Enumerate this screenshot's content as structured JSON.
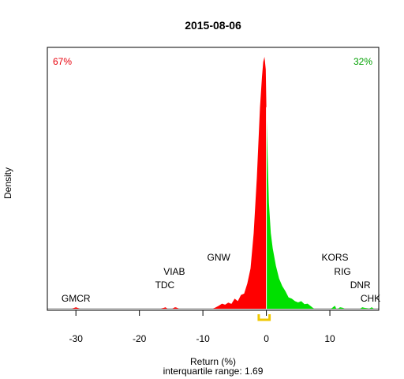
{
  "chart_data": {
    "type": "area",
    "title": "2015-08-06",
    "xlabel": "Return (%)",
    "ylabel": "Density",
    "subtitle": "interquartile range: 1.69",
    "xlim": [
      -34.5,
      17.7
    ],
    "x_ticks": [
      -30,
      -20,
      -10,
      0,
      10
    ],
    "negative_share": "67%",
    "positive_share": "32%",
    "colors": {
      "negative": "#ff0000",
      "positive": "#00e000",
      "iqr": "#f0c800",
      "baseline": "#c8c8c8"
    },
    "iqr": [
      -1.2,
      0.5
    ],
    "density": {
      "x": [
        -30.6,
        -30.2,
        -30.0,
        -29.8,
        -29.4,
        -16.6,
        -16.1,
        -15.9,
        -15.6,
        -14.8,
        -14.4,
        -14.2,
        -13.8,
        -8.4,
        -8.0,
        -7.5,
        -7.0,
        -6.5,
        -6.0,
        -5.5,
        -5.0,
        -4.5,
        -4.0,
        -3.5,
        -3.0,
        -2.5,
        -2.0,
        -1.5,
        -1.0,
        -0.7,
        -0.5,
        -0.3,
        -0.1,
        0.0,
        0.2,
        0.4,
        0.7,
        1.0,
        1.5,
        2.0,
        2.5,
        3.0,
        3.5,
        4.0,
        4.5,
        5.0,
        5.5,
        6.0,
        6.5,
        7.0,
        7.5,
        10.2,
        10.6,
        10.8,
        11.0,
        11.3,
        11.6,
        12.0,
        12.3,
        14.8,
        15.1,
        15.4,
        16.2,
        16.6,
        16.9
      ],
      "y": [
        0,
        0.004,
        0.006,
        0.004,
        0,
        0,
        0.004,
        0.006,
        0,
        0,
        0.006,
        0.005,
        0,
        0,
        0.005,
        0.012,
        0.02,
        0.016,
        0.024,
        0.019,
        0.04,
        0.03,
        0.055,
        0.06,
        0.1,
        0.16,
        0.3,
        0.52,
        0.8,
        0.92,
        0.98,
        1.0,
        0.95,
        0.8,
        0.6,
        0.42,
        0.3,
        0.24,
        0.17,
        0.12,
        0.09,
        0.07,
        0.045,
        0.04,
        0.03,
        0.025,
        0.03,
        0.018,
        0.02,
        0.01,
        0,
        0,
        0.008,
        0.012,
        0,
        0,
        0.006,
        0.004,
        0,
        0,
        0.006,
        0.004,
        0,
        0.006,
        0
      ],
      "y_max": 1.0
    },
    "annotations": [
      {
        "text": "GMCR",
        "x": -30.0,
        "level": 1
      },
      {
        "text": "TDC",
        "x": -16.0,
        "level": 2
      },
      {
        "text": "VIAB",
        "x": -14.5,
        "level": 3
      },
      {
        "text": "GNW",
        "x": -7.5,
        "level": 4
      },
      {
        "text": "KORS",
        "x": 10.8,
        "level": 4
      },
      {
        "text": "RIG",
        "x": 12.0,
        "level": 3
      },
      {
        "text": "DNR",
        "x": 14.8,
        "level": 2
      },
      {
        "text": "CHK",
        "x": 16.4,
        "level": 1
      }
    ]
  }
}
